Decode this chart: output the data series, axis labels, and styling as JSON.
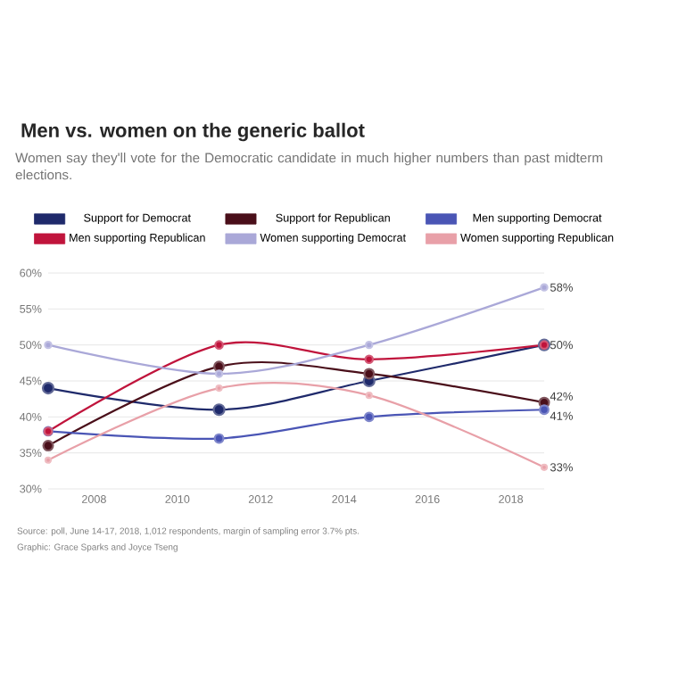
{
  "chart_data": {
    "type": "line",
    "title": "Men vs. women on the generic ballot",
    "subtitle": "Women say they'll vote for the Democratic candidate in much higher numbers than past midterm elections.",
    "x": [
      2006.9,
      2011.0,
      2014.6,
      2018.8
    ],
    "xlim": [
      2006.9,
      2018.8
    ],
    "xticks": [
      2008,
      2010,
      2012,
      2014,
      2016,
      2018
    ],
    "ylim": [
      30,
      60
    ],
    "yticks": [
      {
        "value": 30,
        "label": "30%"
      },
      {
        "value": 35,
        "label": "35%"
      },
      {
        "value": 40,
        "label": "40%"
      },
      {
        "value": 45,
        "label": "45%"
      },
      {
        "value": 50,
        "label": "50%"
      },
      {
        "value": 55,
        "label": "55%"
      },
      {
        "value": 60,
        "label": "60%"
      }
    ],
    "series": [
      {
        "name": "Support for Democrat",
        "color": "#1f2a6b",
        "values": [
          44,
          41,
          45,
          50
        ],
        "value_labels": [
          null,
          null,
          null,
          null
        ]
      },
      {
        "name": "Support for Republican",
        "color": "#4a0f1a",
        "values": [
          36,
          47,
          46,
          42
        ],
        "value_labels": [
          null,
          null,
          null,
          "42%"
        ]
      },
      {
        "name": "Men supporting Democrat",
        "color": "#4a55b5",
        "values": [
          38,
          37,
          40,
          41
        ],
        "value_labels": [
          null,
          null,
          null,
          "41%"
        ]
      },
      {
        "name": "Men supporting Republican",
        "color": "#c0143c",
        "values": [
          38,
          50,
          48,
          50
        ],
        "value_labels": [
          null,
          null,
          null,
          "50%"
        ]
      },
      {
        "name": "Women supporting Democrat",
        "color": "#aaa8d8",
        "values": [
          50,
          46,
          50,
          58
        ],
        "value_labels": [
          null,
          null,
          null,
          "58%"
        ]
      },
      {
        "name": "Women supporting Republican",
        "color": "#e8a0a8",
        "values": [
          34,
          44,
          43,
          33
        ],
        "value_labels": [
          null,
          null,
          null,
          "33%"
        ]
      }
    ],
    "grid": "y",
    "legend": "top",
    "marker": "circle",
    "line_style": "solid",
    "annotations": [
      "Source: poll, June 14-17, 2018, 1,012 respondents, margin of sampling error 3.7% pts.",
      "Graphic: Grace Sparks and Joyce Tseng"
    ]
  }
}
